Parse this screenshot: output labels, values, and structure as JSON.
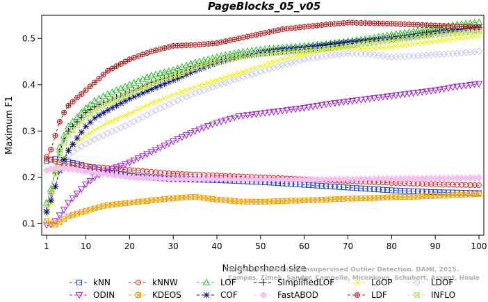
{
  "chart_data": {
    "type": "line",
    "title": "PageBlocks_05_v05",
    "xlabel": "Neighborhood size",
    "ylabel": "Maximum F1",
    "xlim": [
      1,
      100
    ],
    "ylim": [
      0.075,
      0.55
    ],
    "xticks": [
      1,
      10,
      20,
      30,
      40,
      50,
      60,
      70,
      80,
      90,
      100
    ],
    "yticks": [
      0.1,
      0.2,
      0.3,
      0.4,
      0.5
    ],
    "grid": false,
    "legend_position": "bottom",
    "credit": [
      "Campos, Zimek, Sander, Campello, Micenkova, Schubert, Assent, Houle",
      "On the Evaluation of Unsupervised Outlier Detection. DAMI, 2015."
    ],
    "series": [
      {
        "name": "kNN",
        "color": "#1a3fd6",
        "marker": "square",
        "x": [
          1,
          2,
          3,
          5,
          8,
          10,
          15,
          20,
          30,
          40,
          50,
          60,
          70,
          80,
          90,
          100
        ],
        "y": [
          0.235,
          0.238,
          0.24,
          0.236,
          0.229,
          0.224,
          0.212,
          0.203,
          0.196,
          0.194,
          0.19,
          0.184,
          0.178,
          0.172,
          0.168,
          0.166
        ]
      },
      {
        "name": "kNNW",
        "color": "#e02020",
        "marker": "circle",
        "x": [
          1,
          2,
          3,
          5,
          8,
          10,
          15,
          20,
          30,
          40,
          50,
          60,
          70,
          80,
          90,
          100
        ],
        "y": [
          0.244,
          0.238,
          0.234,
          0.23,
          0.226,
          0.224,
          0.22,
          0.216,
          0.208,
          0.204,
          0.2,
          0.196,
          0.192,
          0.188,
          0.185,
          0.183
        ]
      },
      {
        "name": "LOF",
        "color": "#20c020",
        "marker": "triangle",
        "x": [
          1,
          2,
          3,
          4,
          5,
          6,
          8,
          10,
          12,
          15,
          20,
          25,
          30,
          35,
          40,
          45,
          50,
          55,
          60,
          65,
          70,
          75,
          80,
          85,
          90,
          95,
          100
        ],
        "y": [
          0.145,
          0.175,
          0.22,
          0.265,
          0.29,
          0.31,
          0.33,
          0.35,
          0.365,
          0.38,
          0.4,
          0.42,
          0.432,
          0.448,
          0.46,
          0.47,
          0.476,
          0.48,
          0.484,
          0.488,
          0.494,
          0.5,
          0.508,
          0.515,
          0.522,
          0.53,
          0.535
        ]
      },
      {
        "name": "SimplifiedLOF",
        "color": "#000000",
        "marker": "plus",
        "x": [
          1,
          2,
          3,
          4,
          5,
          6,
          8,
          10,
          12,
          15,
          20,
          25,
          30,
          35,
          40,
          45,
          50,
          55,
          60,
          65,
          70,
          75,
          80,
          85,
          90,
          95,
          100
        ],
        "y": [
          0.13,
          0.165,
          0.21,
          0.255,
          0.28,
          0.3,
          0.32,
          0.34,
          0.352,
          0.365,
          0.385,
          0.405,
          0.42,
          0.438,
          0.452,
          0.462,
          0.468,
          0.472,
          0.476,
          0.48,
          0.488,
          0.495,
          0.502,
          0.508,
          0.514,
          0.518,
          0.52
        ]
      },
      {
        "name": "LoOP",
        "color": "#f0f000",
        "marker": "x",
        "x": [
          1,
          2,
          3,
          4,
          5,
          6,
          8,
          10,
          12,
          15,
          20,
          25,
          30,
          35,
          40,
          45,
          50,
          55,
          60,
          65,
          70,
          75,
          80,
          85,
          90,
          95,
          100
        ],
        "y": [
          0.12,
          0.145,
          0.18,
          0.22,
          0.245,
          0.26,
          0.275,
          0.29,
          0.302,
          0.318,
          0.338,
          0.36,
          0.378,
          0.395,
          0.41,
          0.425,
          0.44,
          0.455,
          0.466,
          0.476,
          0.48,
          0.478,
          0.482,
          0.488,
          0.494,
          0.5,
          0.506
        ]
      },
      {
        "name": "LDOF",
        "color": "#c6c8f0",
        "marker": "diamond",
        "x": [
          1,
          2,
          3,
          4,
          5,
          6,
          8,
          10,
          12,
          15,
          20,
          25,
          30,
          35,
          40,
          45,
          50,
          55,
          60,
          65,
          70,
          75,
          80,
          85,
          90,
          95,
          100
        ],
        "y": [
          0.125,
          0.15,
          0.18,
          0.21,
          0.232,
          0.248,
          0.262,
          0.272,
          0.282,
          0.295,
          0.315,
          0.34,
          0.362,
          0.382,
          0.398,
          0.414,
          0.428,
          0.442,
          0.455,
          0.462,
          0.468,
          0.466,
          0.46,
          0.462,
          0.465,
          0.468,
          0.472
        ]
      },
      {
        "name": "ODIN",
        "color": "#9d22d8",
        "marker": "triangle-down",
        "x": [
          1,
          2,
          3,
          4,
          5,
          6,
          8,
          10,
          12,
          15,
          20,
          25,
          30,
          35,
          40,
          45,
          50,
          55,
          60,
          65,
          70,
          75,
          80,
          85,
          90,
          95,
          100
        ],
        "y": [
          0.097,
          0.098,
          0.105,
          0.118,
          0.13,
          0.145,
          0.165,
          0.185,
          0.2,
          0.215,
          0.232,
          0.255,
          0.278,
          0.3,
          0.318,
          0.332,
          0.338,
          0.344,
          0.35,
          0.358,
          0.364,
          0.37,
          0.376,
          0.382,
          0.388,
          0.396,
          0.402
        ]
      },
      {
        "name": "KDEOS",
        "color": "#f0a000",
        "marker": "square-x",
        "x": [
          1,
          2,
          3,
          4,
          5,
          6,
          8,
          10,
          12,
          15,
          20,
          25,
          30,
          35,
          40,
          45,
          50,
          55,
          60,
          65,
          70,
          75,
          80,
          85,
          90,
          95,
          100
        ],
        "y": [
          0.105,
          0.1,
          0.098,
          0.103,
          0.11,
          0.116,
          0.122,
          0.128,
          0.133,
          0.14,
          0.145,
          0.15,
          0.155,
          0.158,
          0.152,
          0.148,
          0.147,
          0.149,
          0.15,
          0.152,
          0.154,
          0.155,
          0.157,
          0.158,
          0.16,
          0.162,
          0.164
        ]
      },
      {
        "name": "COF",
        "color": "#0a0a80",
        "marker": "asterisk",
        "x": [
          1,
          2,
          3,
          4,
          5,
          6,
          8,
          10,
          12,
          15,
          20,
          25,
          30,
          35,
          40,
          45,
          50,
          55,
          60,
          65,
          70,
          75,
          80,
          85,
          90,
          95,
          100
        ],
        "y": [
          0.125,
          0.15,
          0.18,
          0.215,
          0.238,
          0.258,
          0.285,
          0.31,
          0.328,
          0.345,
          0.37,
          0.39,
          0.41,
          0.43,
          0.448,
          0.46,
          0.47,
          0.476,
          0.48,
          0.486,
          0.492,
          0.496,
          0.5,
          0.505,
          0.512,
          0.518,
          0.524
        ]
      },
      {
        "name": "FastABOD",
        "color": "#f8c0f0",
        "marker": "diamond-filled",
        "x": [
          1,
          2,
          3,
          5,
          8,
          10,
          15,
          20,
          30,
          40,
          50,
          60,
          70,
          80,
          90,
          100
        ],
        "y": [
          0.215,
          0.218,
          0.22,
          0.219,
          0.216,
          0.212,
          0.206,
          0.2,
          0.196,
          0.196,
          0.195,
          0.195,
          0.196,
          0.197,
          0.198,
          0.199
        ]
      },
      {
        "name": "LDF",
        "color": "#b01818",
        "marker": "circle-plus",
        "x": [
          1,
          2,
          3,
          4,
          5,
          6,
          8,
          10,
          12,
          15,
          20,
          25,
          30,
          35,
          40,
          45,
          50,
          55,
          60,
          65,
          70,
          75,
          80,
          85,
          90,
          95,
          100
        ],
        "y": [
          0.24,
          0.26,
          0.29,
          0.32,
          0.34,
          0.355,
          0.372,
          0.388,
          0.405,
          0.43,
          0.455,
          0.472,
          0.484,
          0.486,
          0.49,
          0.5,
          0.51,
          0.52,
          0.525,
          0.53,
          0.534,
          0.533,
          0.532,
          0.53,
          0.528,
          0.526,
          0.524
        ]
      },
      {
        "name": "INFLO",
        "color": "#b8e060",
        "marker": "square-x",
        "x": [
          1,
          2,
          3,
          4,
          5,
          6,
          8,
          10,
          12,
          15,
          20,
          25,
          30,
          35,
          40,
          45,
          50,
          55,
          60,
          65,
          70,
          75,
          80,
          85,
          90,
          95,
          100
        ],
        "y": [
          0.14,
          0.168,
          0.21,
          0.252,
          0.275,
          0.292,
          0.312,
          0.33,
          0.345,
          0.36,
          0.38,
          0.402,
          0.418,
          0.436,
          0.45,
          0.46,
          0.466,
          0.47,
          0.474,
          0.478,
          0.484,
          0.49,
          0.496,
          0.502,
          0.508,
          0.512,
          0.516
        ]
      }
    ],
    "legend_order": [
      [
        "kNN",
        "kNNW",
        "LOF",
        "SimplifiedLOF",
        "LoOP",
        "LDOF"
      ],
      [
        "ODIN",
        "KDEOS",
        "COF",
        "FastABOD",
        "LDF",
        "INFLO"
      ]
    ]
  }
}
